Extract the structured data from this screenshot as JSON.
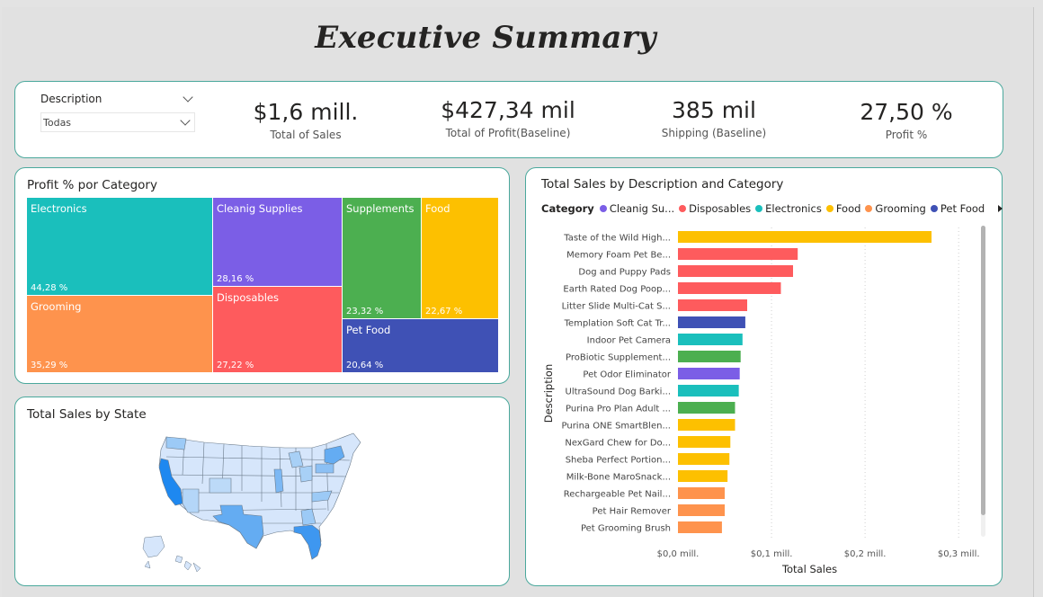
{
  "page": {
    "title": "Executive Summary"
  },
  "slicer": {
    "label": "Description",
    "value": "Todas"
  },
  "kpis": [
    {
      "value": "$1,6 mill.",
      "label": "Total of Sales"
    },
    {
      "value": "$427,34 mil",
      "label": "Total of Profit(Baseline)"
    },
    {
      "value": "385 mil",
      "label": "Shipping (Baseline)"
    },
    {
      "value": "27,50 %",
      "label": "Profit %"
    }
  ],
  "treemap": {
    "title": "Profit % por Category",
    "tiles": [
      {
        "name": "Electronics",
        "pct": "44,28 %",
        "color": "#1abfbc"
      },
      {
        "name": "Grooming",
        "pct": "35,29 %",
        "color": "#fe934d"
      },
      {
        "name": "Cleanig Supplies",
        "pct": "28,16 %",
        "color": "#7b5ee6"
      },
      {
        "name": "Disposables",
        "pct": "27,22 %",
        "color": "#fe5b5d"
      },
      {
        "name": "Supplements",
        "pct": "23,32 %",
        "color": "#4caf50"
      },
      {
        "name": "Food",
        "pct": "22,67 %",
        "color": "#fdc000"
      },
      {
        "name": "Pet Food",
        "pct": "20,64 %",
        "color": "#3f51b5"
      }
    ]
  },
  "map": {
    "title": "Total Sales by State"
  },
  "bar_chart": {
    "title": "Total Sales by Description and Category",
    "legend_title": "Category",
    "legend": [
      {
        "name": "Cleanig Su...",
        "color": "#7b5ee6"
      },
      {
        "name": "Disposables",
        "color": "#fe5b5d"
      },
      {
        "name": "Electronics",
        "color": "#1abfbc"
      },
      {
        "name": "Food",
        "color": "#fdc000"
      },
      {
        "name": "Grooming",
        "color": "#fe934d"
      },
      {
        "name": "Pet Food",
        "color": "#3f51b5"
      }
    ]
  },
  "chart_data": {
    "type": "bar",
    "orientation": "horizontal",
    "title": "Total Sales by Description and Category",
    "xlabel": "Total Sales",
    "ylabel": "Description",
    "xlim": [
      0,
      0.32
    ],
    "x_ticks": [
      "$0,0 mill.",
      "$0,1 mill.",
      "$0,2 mill.",
      "$0,3 mill."
    ],
    "x_tick_values": [
      0,
      0.1,
      0.2,
      0.3
    ],
    "grid": "vertical dotted",
    "categories": [
      "Taste of the Wild High...",
      "Memory Foam Pet Be...",
      "Dog and Puppy Pads",
      "Earth Rated Dog Poop...",
      "Litter Slide Multi-Cat S...",
      "Templation Soft Cat Tr...",
      "Indoor Pet Camera",
      "ProBiotic Supplement...",
      "Pet Odor Eliminator",
      "UltraSound Dog Barki...",
      "Purina Pro Plan Adult ...",
      "Purina ONE SmartBlen...",
      "NexGard Chew for Do...",
      "Sheba Perfect Portion...",
      "Milk-Bone MaroSnack...",
      "Rechargeable Pet Nail...",
      "Pet Hair Remover",
      "Pet Grooming Brush"
    ],
    "values": [
      0.271,
      0.128,
      0.123,
      0.11,
      0.074,
      0.072,
      0.069,
      0.067,
      0.066,
      0.065,
      0.061,
      0.061,
      0.056,
      0.055,
      0.053,
      0.05,
      0.05,
      0.047
    ],
    "bar_categories": [
      "Food",
      "Disposables",
      "Disposables",
      "Disposables",
      "Disposables",
      "Pet Food",
      "Electronics",
      "Supplements",
      "Cleanig Supplies",
      "Electronics",
      "Supplements",
      "Food",
      "Food",
      "Food",
      "Food",
      "Grooming",
      "Grooming",
      "Grooming"
    ],
    "bar_colors": [
      "#fdc000",
      "#fe5b5d",
      "#fe5b5d",
      "#fe5b5d",
      "#fe5b5d",
      "#3f51b5",
      "#1abfbc",
      "#4caf50",
      "#7b5ee6",
      "#1abfbc",
      "#4caf50",
      "#fdc000",
      "#fdc000",
      "#fdc000",
      "#fdc000",
      "#fe934d",
      "#fe934d",
      "#fe934d"
    ]
  }
}
